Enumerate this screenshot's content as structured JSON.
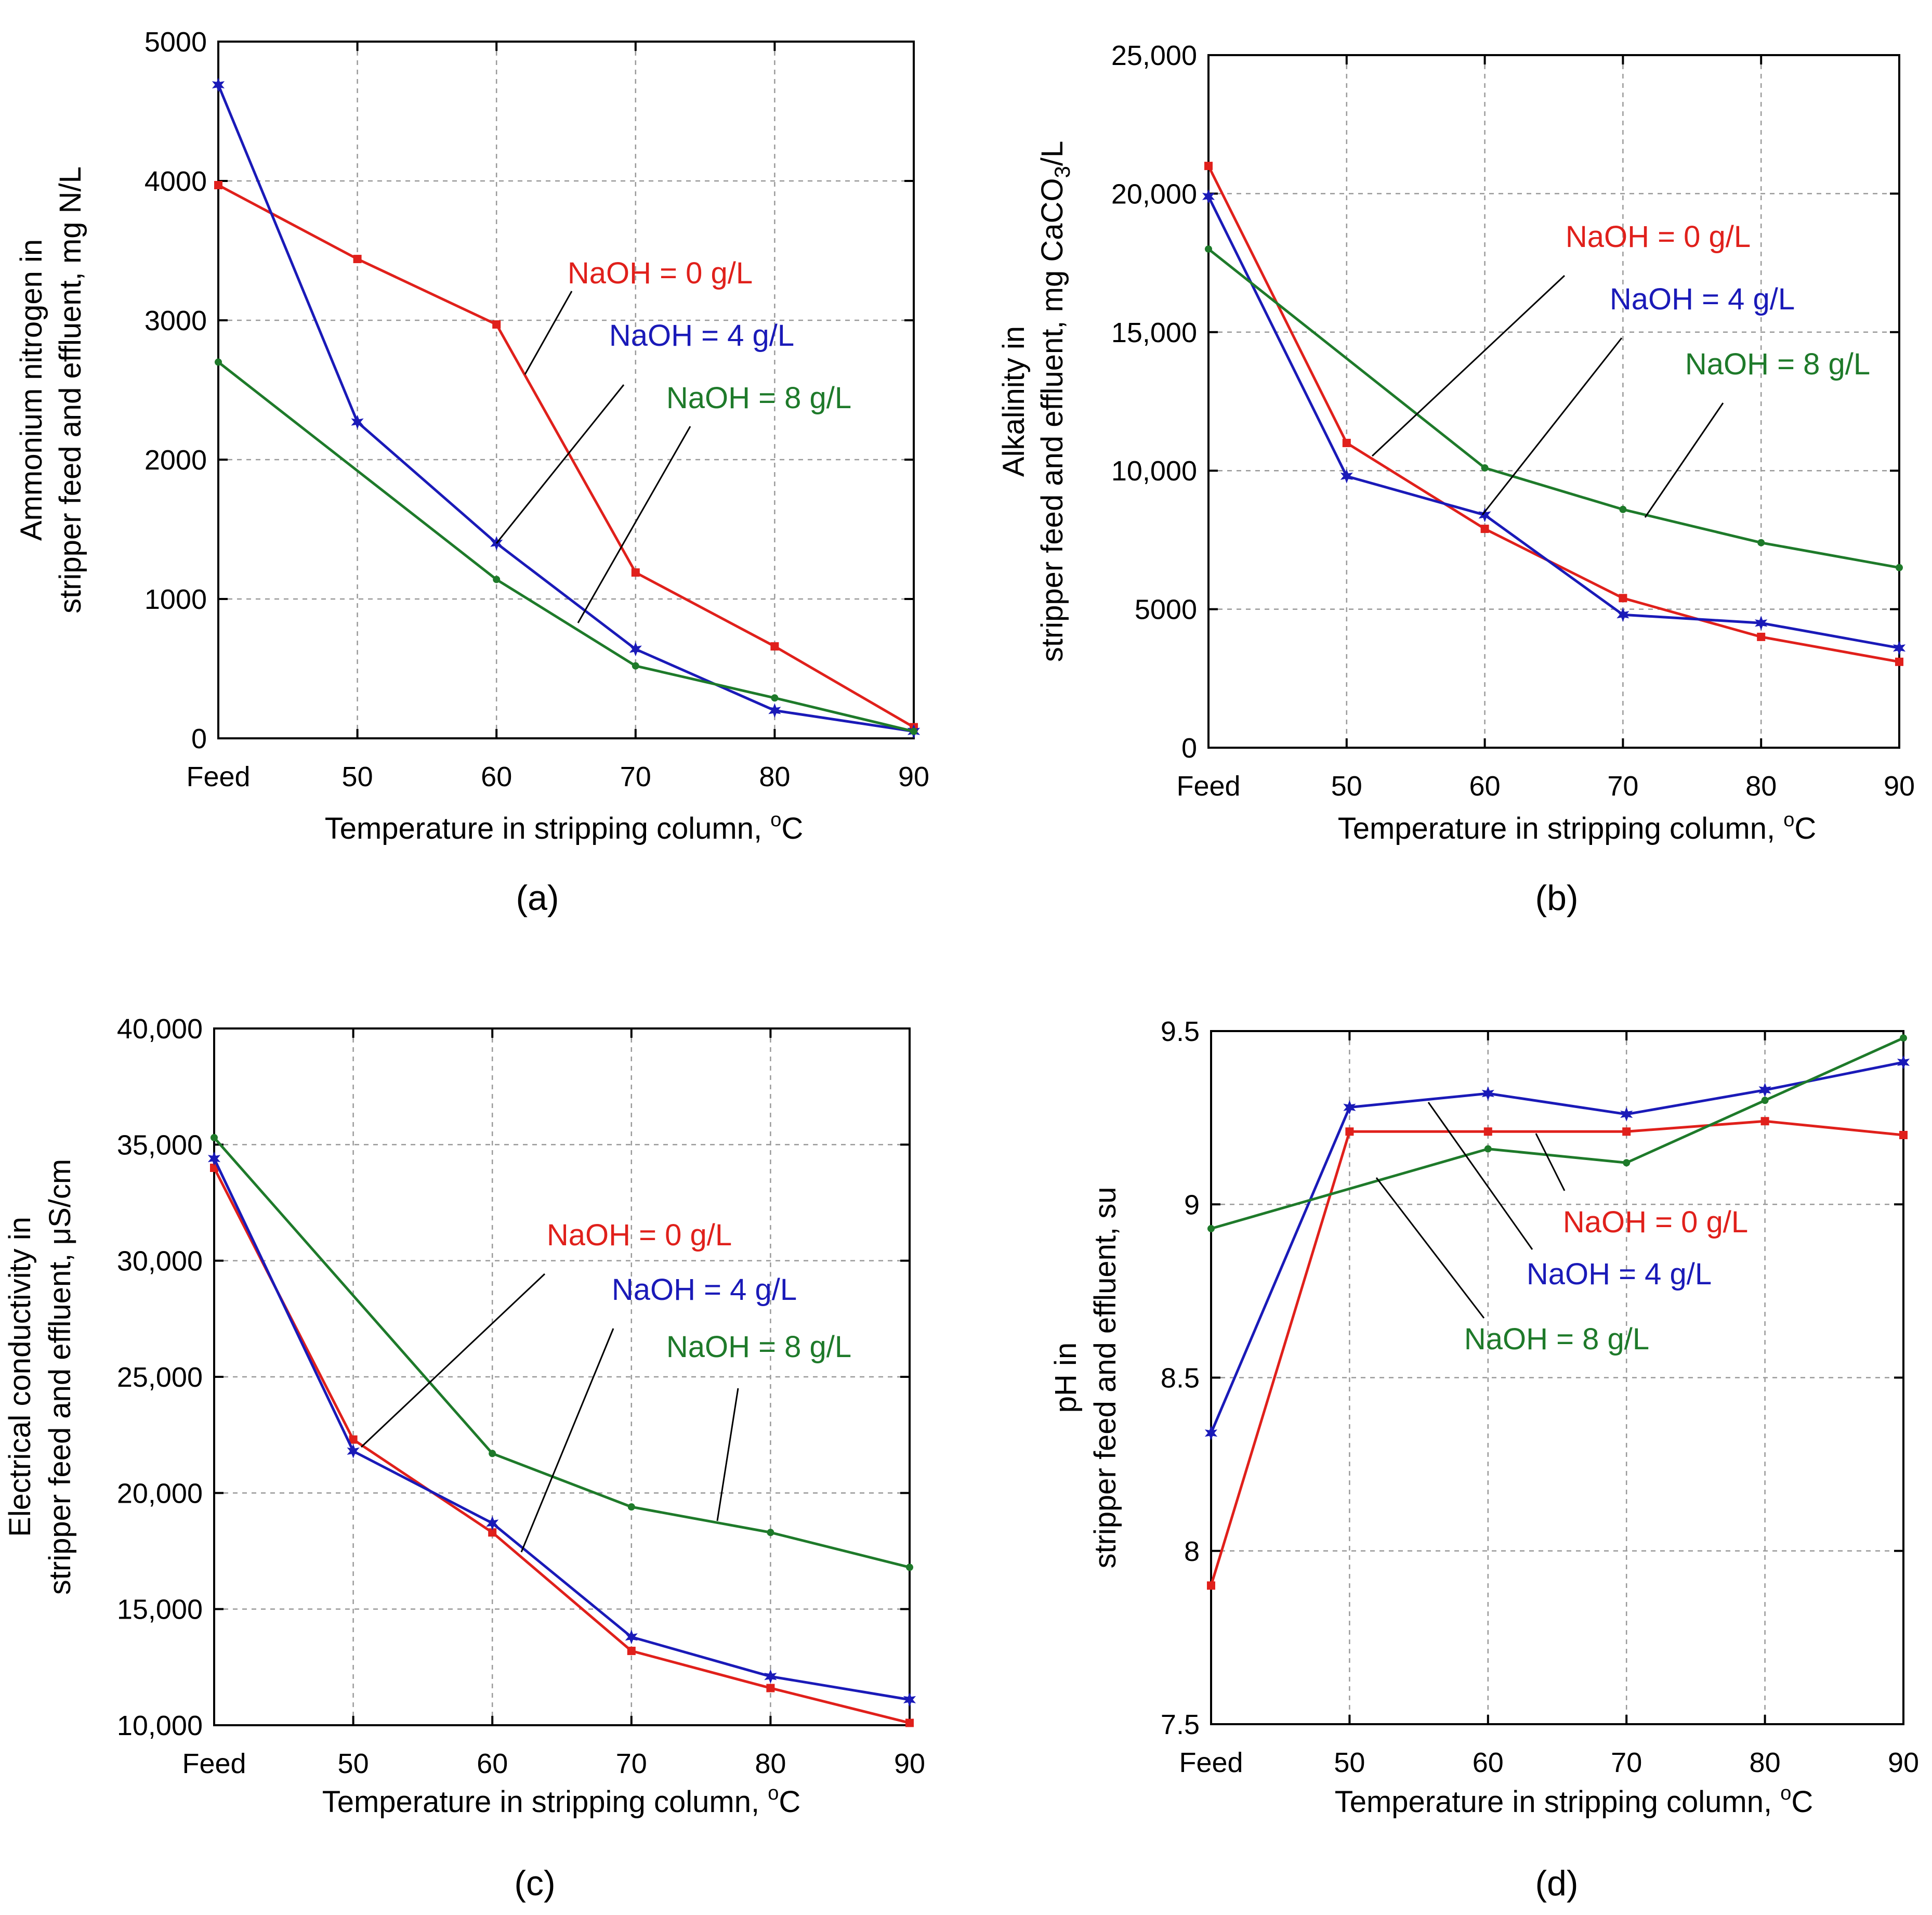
{
  "chart_data": [
    {
      "panel": "(a)",
      "type": "line",
      "categories": [
        "Feed",
        "50",
        "60",
        "70",
        "80",
        "90"
      ],
      "xlabel": "Temperature in stripping column, oC",
      "ylabel": [
        "Ammonium nitrogen in",
        "stripper feed and effluent, mg N/L"
      ],
      "ylim": [
        0,
        5000
      ],
      "yticks": [
        0,
        1000,
        2000,
        3000,
        4000,
        5000
      ],
      "ytick_labels": [
        "0",
        "1000",
        "2000",
        "3000",
        "4000",
        "5000"
      ],
      "grid": true,
      "series": [
        {
          "name": "NaOH = 0 g/L",
          "color": "#e0201b",
          "marker": "square",
          "values": [
            3970,
            3440,
            2970,
            1190,
            660,
            80
          ]
        },
        {
          "name": "NaOH = 4 g/L",
          "color": "#1a1ab8",
          "marker": "star",
          "values": [
            4690,
            2270,
            1400,
            640,
            200,
            50
          ]
        },
        {
          "name": "NaOH = 8 g/L",
          "color": "#1e7a2a",
          "marker": "dot",
          "values": [
            2700,
            null,
            1140,
            520,
            290,
            50
          ]
        }
      ]
    },
    {
      "panel": "(b)",
      "type": "line",
      "categories": [
        "Feed",
        "50",
        "60",
        "70",
        "80",
        "90"
      ],
      "xlabel": "Temperature in stripping column, oC",
      "ylabel": [
        "Alkalinity in",
        "stripper feed and effluent, mg CaCO3/L"
      ],
      "ylim": [
        0,
        25000
      ],
      "yticks": [
        0,
        5000,
        10000,
        15000,
        20000,
        25000
      ],
      "ytick_labels": [
        "0",
        "5000",
        "10,000",
        "15,000",
        "20,000",
        "25,000"
      ],
      "grid": true,
      "series": [
        {
          "name": "NaOH = 0 g/L",
          "color": "#e0201b",
          "marker": "square",
          "values": [
            21000,
            11000,
            7900,
            5400,
            4000,
            3100
          ]
        },
        {
          "name": "NaOH = 4 g/L",
          "color": "#1a1ab8",
          "marker": "star",
          "values": [
            19900,
            9800,
            8400,
            4800,
            4500,
            3600
          ]
        },
        {
          "name": "NaOH = 8 g/L",
          "color": "#1e7a2a",
          "marker": "dot",
          "values": [
            18000,
            null,
            10100,
            8600,
            7400,
            6500
          ]
        }
      ]
    },
    {
      "panel": "(c)",
      "type": "line",
      "categories": [
        "Feed",
        "50",
        "60",
        "70",
        "80",
        "90"
      ],
      "xlabel": "Temperature in stripping column, oC",
      "ylabel": [
        "Electrical conductivity in",
        "stripper feed and effluent, μS/cm"
      ],
      "ylim": [
        10000,
        40000
      ],
      "yticks": [
        10000,
        15000,
        20000,
        25000,
        30000,
        35000,
        40000
      ],
      "ytick_labels": [
        "10,000",
        "15,000",
        "20,000",
        "25,000",
        "30,000",
        "35,000",
        "40,000"
      ],
      "grid": true,
      "series": [
        {
          "name": "NaOH = 0 g/L",
          "color": "#e0201b",
          "marker": "square",
          "values": [
            34000,
            22300,
            18300,
            13200,
            11600,
            10100
          ]
        },
        {
          "name": "NaOH = 4 g/L",
          "color": "#1a1ab8",
          "marker": "star",
          "values": [
            34400,
            21800,
            18700,
            13800,
            12100,
            11100
          ]
        },
        {
          "name": "NaOH = 8 g/L",
          "color": "#1e7a2a",
          "marker": "dot",
          "values": [
            35300,
            null,
            21700,
            19400,
            18300,
            16800
          ]
        }
      ]
    },
    {
      "panel": "(d)",
      "type": "line",
      "categories": [
        "Feed",
        "50",
        "60",
        "70",
        "80",
        "90"
      ],
      "xlabel": "Temperature in stripping column, oC",
      "ylabel": [
        "pH in",
        "stripper feed and effluent, su"
      ],
      "ylim": [
        7.5,
        9.5
      ],
      "yticks": [
        7.5,
        8,
        8.5,
        9,
        9.5
      ],
      "ytick_labels": [
        "7.5",
        "8",
        "8.5",
        "9",
        "9.5"
      ],
      "grid": true,
      "series": [
        {
          "name": "NaOH = 0 g/L",
          "color": "#e0201b",
          "marker": "square",
          "values": [
            7.9,
            9.21,
            9.21,
            9.21,
            9.24,
            9.2
          ]
        },
        {
          "name": "NaOH = 4 g/L",
          "color": "#1a1ab8",
          "marker": "star",
          "values": [
            8.34,
            9.28,
            9.32,
            9.26,
            9.33,
            9.41
          ]
        },
        {
          "name": "NaOH = 8 g/L",
          "color": "#1e7a2a",
          "marker": "dot",
          "values": [
            8.93,
            null,
            9.16,
            9.12,
            9.3,
            9.48
          ]
        }
      ]
    }
  ]
}
